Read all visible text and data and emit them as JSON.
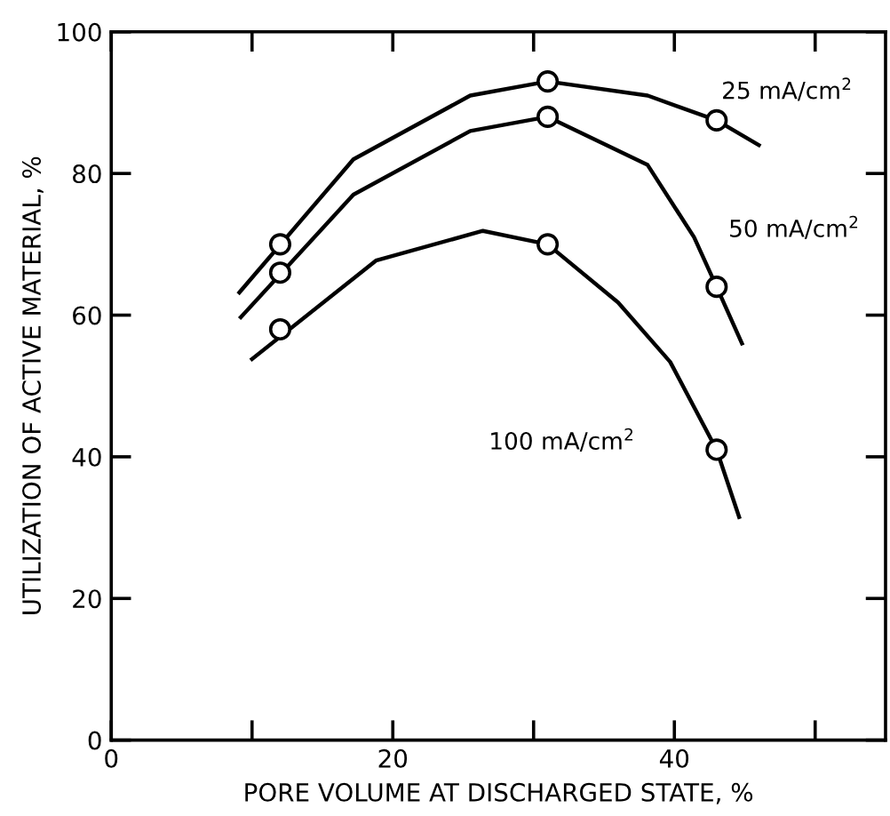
{
  "chart_data": {
    "type": "line",
    "xlabel": "PORE VOLUME AT DISCHARGED STATE, %",
    "ylabel": "UTILIZATION OF ACTIVE MATERIAL, %",
    "xlim": [
      0,
      55
    ],
    "xticks": [
      0,
      {
        "value": 10,
        "label": null
      },
      20,
      {
        "value": 30,
        "label": null
      },
      40,
      {
        "value": 50,
        "label": null
      }
    ],
    "ylim": [
      0,
      100
    ],
    "yticks": [
      0,
      20,
      40,
      60,
      80,
      100
    ],
    "grid": false,
    "series": [
      {
        "name": "25 mA/cm$^{2}$",
        "color": "#000000",
        "marker": "none",
        "x": [
          9.1,
          17.2,
          25.5,
          31,
          38.1,
          43,
          46
        ],
        "values": [
          63.2,
          82,
          91,
          93,
          91,
          87.5,
          84
        ]
      },
      {
        "name": "50 mA/cm$^{2}$",
        "color": "#000000",
        "marker": "none",
        "x": [
          9.2,
          17.2,
          25.5,
          31,
          38.1,
          41.4,
          43,
          44.8
        ],
        "values": [
          59.7,
          77,
          86,
          88,
          81.2,
          71,
          64,
          56
        ]
      },
      {
        "name": "100 mA/cm$^{2}$",
        "color": "#000000",
        "marker": "none",
        "x": [
          10,
          18.8,
          26.4,
          31,
          36,
          39.7,
          43,
          44.6
        ],
        "values": [
          53.8,
          67.7,
          71.9,
          70,
          61.8,
          53.4,
          41,
          31.5
        ]
      },
      {
        "type": "scatter",
        "color": "#000000",
        "marker": "circle",
        "x": [
          12,
          31,
          43
        ],
        "values": [
          70,
          93,
          87.5
        ]
      },
      {
        "type": "scatter",
        "color": "#000000",
        "marker": "circle",
        "x": [
          12,
          31,
          43
        ],
        "values": [
          66,
          88,
          64
        ]
      },
      {
        "type": "scatter",
        "color": "#000000",
        "marker": "circle",
        "x": [
          12,
          31,
          43
        ],
        "values": [
          58,
          70,
          41
        ]
      }
    ]
  }
}
